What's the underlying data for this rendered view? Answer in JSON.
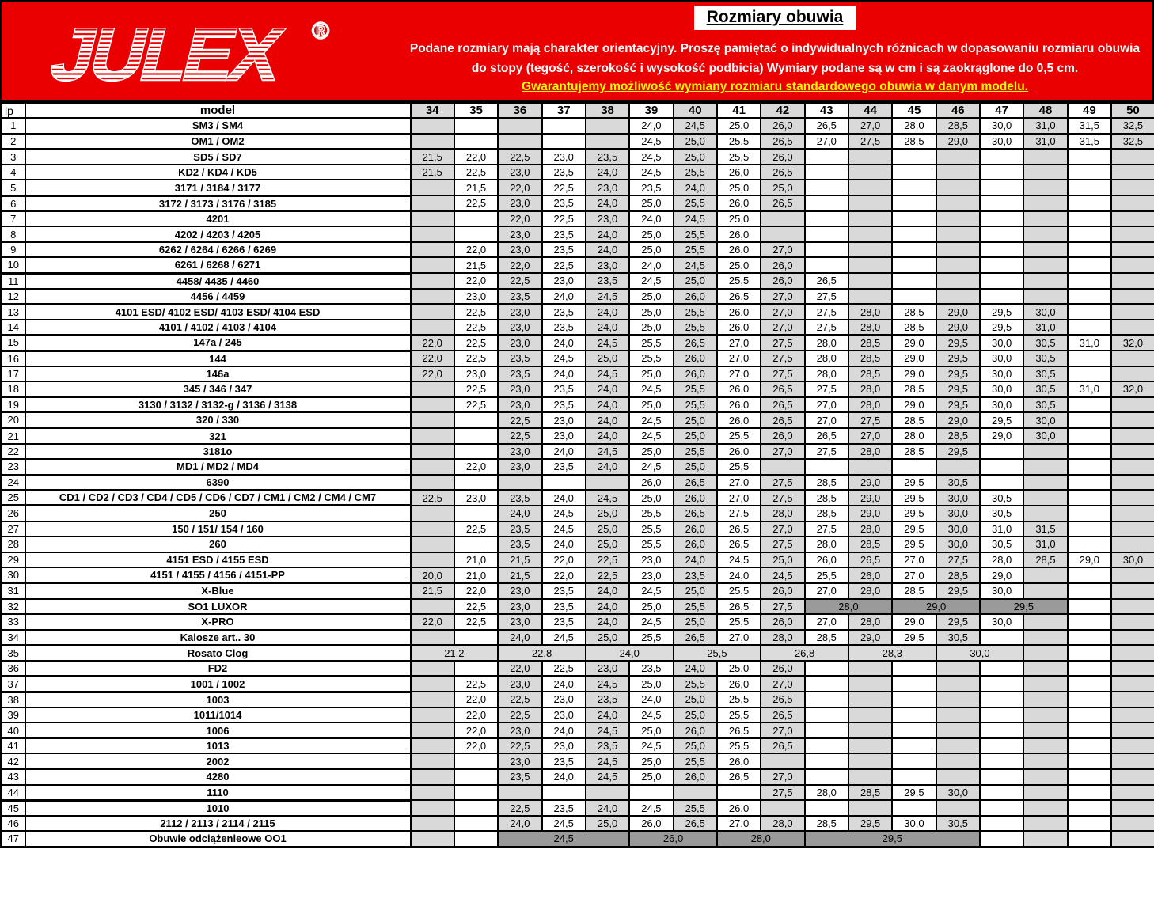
{
  "header": {
    "brand": "JULEX",
    "registered_mark": "®",
    "title": "Rozmiary obuwia",
    "note": "Podane rozmiary mają charakter orientacyjny. Proszę pamiętać o indywidualnych różnicach w dopasowaniu rozmiaru obuwia do stopy (tegość, szerokość i wysokość podbicia) Wymiary podane są w cm i są zaokrąglone do 0,5 cm.",
    "guarantee": "Gwarantujemy możliwość wymiany rozmiaru standardowego obuwia w danym modelu.",
    "colors": {
      "red": "#ea0000",
      "yellow": "#ffff00",
      "title_text": "#000000",
      "note_text": "#ffffff"
    }
  },
  "table": {
    "colors": {
      "shaded_column": "#d9d9d9",
      "merged_dark": "#9a9a9a",
      "merged_light": "#dcdcdc"
    },
    "lp_header": "lp",
    "model_header": "model",
    "sizes": [
      34,
      35,
      36,
      37,
      38,
      39,
      40,
      41,
      42,
      43,
      44,
      45,
      46,
      47,
      48,
      49,
      50
    ],
    "thick_after": [
      5,
      10,
      15,
      20,
      25,
      30,
      37,
      44
    ],
    "rows": [
      {
        "lp": 1,
        "model": "SM3 / SM4",
        "values": {
          "39": "24,0",
          "40": "24,5",
          "41": "25,0",
          "42": "26,0",
          "43": "26,5",
          "44": "27,0",
          "45": "28,0",
          "46": "28,5",
          "47": "30,0",
          "48": "31,0",
          "49": "31,5",
          "50": "32,5"
        }
      },
      {
        "lp": 2,
        "model": "OM1 / OM2",
        "values": {
          "39": "24,5",
          "40": "25,0",
          "41": "25,5",
          "42": "26,5",
          "43": "27,0",
          "44": "27,5",
          "45": "28,5",
          "46": "29,0",
          "47": "30,0",
          "48": "31,0",
          "49": "31,5",
          "50": "32,5"
        }
      },
      {
        "lp": 3,
        "model": "SD5 / SD7",
        "values": {
          "34": "21,5",
          "35": "22,0",
          "36": "22,5",
          "37": "23,0",
          "38": "23,5",
          "39": "24,5",
          "40": "25,0",
          "41": "25,5",
          "42": "26,0"
        }
      },
      {
        "lp": 4,
        "model": "KD2 / KD4 / KD5",
        "values": {
          "34": "21,5",
          "35": "22,5",
          "36": "23,0",
          "37": "23,5",
          "38": "24,0",
          "39": "24,5",
          "40": "25,5",
          "41": "26,0",
          "42": "26,5"
        }
      },
      {
        "lp": 5,
        "model": "3171 / 3184  / 3177",
        "values": {
          "35": "21,5",
          "36": "22,0",
          "37": "22,5",
          "38": "23,0",
          "39": "23,5",
          "40": "24,0",
          "41": "25,0",
          "42": "25,0"
        }
      },
      {
        "lp": 6,
        "model": "3172 / 3173 / 3176 / 3185",
        "values": {
          "35": "22,5",
          "36": "23,0",
          "37": "23,5",
          "38": "24,0",
          "39": "25,0",
          "40": "25,5",
          "41": "26,0",
          "42": "26,5"
        }
      },
      {
        "lp": 7,
        "model": "4201",
        "values": {
          "36": "22,0",
          "37": "22,5",
          "38": "23,0",
          "39": "24,0",
          "40": "24,5",
          "41": "25,0"
        }
      },
      {
        "lp": 8,
        "model": "4202 / 4203 / 4205",
        "values": {
          "36": "23,0",
          "37": "23,5",
          "38": "24,0",
          "39": "25,0",
          "40": "25,5",
          "41": "26,0"
        }
      },
      {
        "lp": 9,
        "model": "6262 / 6264 / 6266 / 6269",
        "values": {
          "35": "22,0",
          "36": "23,0",
          "37": "23,5",
          "38": "24,0",
          "39": "25,0",
          "40": "25,5",
          "41": "26,0",
          "42": "27,0"
        }
      },
      {
        "lp": 10,
        "model": "6261  / 6268 / 6271",
        "values": {
          "35": "21,5",
          "36": "22,0",
          "37": "22,5",
          "38": "23,0",
          "39": "24,0",
          "40": "24,5",
          "41": "25,0",
          "42": "26,0"
        }
      },
      {
        "lp": 11,
        "model": "4458/ 4435 / 4460",
        "values": {
          "35": "22,0",
          "36": "22,5",
          "37": "23,0",
          "38": "23,5",
          "39": "24,5",
          "40": "25,0",
          "41": "25,5",
          "42": "26,0",
          "43": "26,5"
        }
      },
      {
        "lp": 12,
        "model": "4456 / 4459",
        "values": {
          "35": "23,0",
          "36": "23,5",
          "37": "24,0",
          "38": "24,5",
          "39": "25,0",
          "40": "26,0",
          "41": "26,5",
          "42": "27,0",
          "43": "27,5"
        }
      },
      {
        "lp": 13,
        "model": "4101 ESD/ 4102 ESD/ 4103 ESD/ 4104 ESD",
        "values": {
          "35": "22,5",
          "36": "23,0",
          "37": "23,5",
          "38": "24,0",
          "39": "25,0",
          "40": "25,5",
          "41": "26,0",
          "42": "27,0",
          "43": "27,5",
          "44": "28,0",
          "45": "28,5",
          "46": "29,0",
          "47": "29,5",
          "48": "30,0"
        }
      },
      {
        "lp": 14,
        "model": "4101 / 4102 / 4103 / 4104",
        "values": {
          "35": "22,5",
          "36": "23,0",
          "37": "23,5",
          "38": "24,0",
          "39": "25,0",
          "40": "25,5",
          "41": "26,0",
          "42": "27,0",
          "43": "27,5",
          "44": "28,0",
          "45": "28,5",
          "46": "29,0",
          "47": "29,5",
          "48": "31,0"
        }
      },
      {
        "lp": 15,
        "model": "147a / 245",
        "values": {
          "34": "22,0",
          "35": "22,5",
          "36": "23,0",
          "37": "24,0",
          "38": "24,5",
          "39": "25,5",
          "40": "26,5",
          "41": "27,0",
          "42": "27,5",
          "43": "28,0",
          "44": "28,5",
          "45": "29,0",
          "46": "29,5",
          "47": "30,0",
          "48": "30,5",
          "49": "31,0",
          "50": "32,0"
        }
      },
      {
        "lp": 16,
        "model": "144",
        "values": {
          "34": "22,0",
          "35": "22,5",
          "36": "23,5",
          "37": "24,5",
          "38": "25,0",
          "39": "25,5",
          "40": "26,0",
          "41": "27,0",
          "42": "27,5",
          "43": "28,0",
          "44": "28,5",
          "45": "29,0",
          "46": "29,5",
          "47": "30,0",
          "48": "30,5"
        }
      },
      {
        "lp": 17,
        "model": "146a",
        "values": {
          "34": "22,0",
          "35": "23,0",
          "36": "23,5",
          "37": "24,0",
          "38": "24,5",
          "39": "25,0",
          "40": "26,0",
          "41": "27,0",
          "42": "27,5",
          "43": "28,0",
          "44": "28,5",
          "45": "29,0",
          "46": "29,5",
          "47": "30,0",
          "48": "30,5"
        }
      },
      {
        "lp": 18,
        "model": "345 / 346 / 347",
        "values": {
          "35": "22,5",
          "36": "23,0",
          "37": "23,5",
          "38": "24,0",
          "39": "24,5",
          "40": "25,5",
          "41": "26,0",
          "42": "26,5",
          "43": "27,5",
          "44": "28,0",
          "45": "28,5",
          "46": "29,5",
          "47": "30,0",
          "48": "30,5",
          "49": "31,0",
          "50": "32,0"
        }
      },
      {
        "lp": 19,
        "model": "3130 / 3132 / 3132-g / 3136 / 3138",
        "values": {
          "35": "22,5",
          "36": "23,0",
          "37": "23,5",
          "38": "24,0",
          "39": "25,0",
          "40": "25,5",
          "41": "26,0",
          "42": "26,5",
          "43": "27,0",
          "44": "28,0",
          "45": "29,0",
          "46": "29,5",
          "47": "30,0",
          "48": "30,5"
        }
      },
      {
        "lp": 20,
        "model": "320 / 330",
        "values": {
          "36": "22,5",
          "37": "23,0",
          "38": "24,0",
          "39": "24,5",
          "40": "25,0",
          "41": "26,0",
          "42": "26,5",
          "43": "27,0",
          "44": "27,5",
          "45": "28,5",
          "46": "29,0",
          "47": "29,5",
          "48": "30,0"
        }
      },
      {
        "lp": 21,
        "model": "321",
        "values": {
          "36": "22,5",
          "37": "23,0",
          "38": "24,0",
          "39": "24,5",
          "40": "25,0",
          "41": "25,5",
          "42": "26,0",
          "43": "26,5",
          "44": "27,0",
          "45": "28,0",
          "46": "28,5",
          "47": "29,0",
          "48": "30,0"
        }
      },
      {
        "lp": 22,
        "model": "3181o",
        "values": {
          "36": "23,0",
          "37": "24,0",
          "38": "24,5",
          "39": "25,0",
          "40": "25,5",
          "41": "26,0",
          "42": "27,0",
          "43": "27,5",
          "44": "28,0",
          "45": "28,5",
          "46": "29,5"
        }
      },
      {
        "lp": 23,
        "model": "MD1 / MD2 / MD4",
        "values": {
          "35": "22,0",
          "36": "23,0",
          "37": "23,5",
          "38": "24,0",
          "39": "24,5",
          "40": "25,0",
          "41": "25,5"
        }
      },
      {
        "lp": 24,
        "model": "6390",
        "values": {
          "39": "26,0",
          "40": "26,5",
          "41": "27,0",
          "42": "27,5",
          "43": "28,5",
          "44": "29,0",
          "45": "29,5",
          "46": "30,5"
        }
      },
      {
        "lp": 25,
        "model": "CD1 / CD2 / CD3 / CD4 / CD5 / CD6 / CD7 / CM1 / CM2 / CM4 / CM7",
        "values": {
          "34": "22,5",
          "35": "23,0",
          "36": "23,5",
          "37": "24,0",
          "38": "24,5",
          "39": "25,0",
          "40": "26,0",
          "41": "27,0",
          "42": "27,5",
          "43": "28,5",
          "44": "29,0",
          "45": "29,5",
          "46": "30,0",
          "47": "30,5"
        }
      },
      {
        "lp": 26,
        "model": "250",
        "values": {
          "36": "24,0",
          "37": "24,5",
          "38": "25,0",
          "39": "25,5",
          "40": "26,5",
          "41": "27,5",
          "42": "28,0",
          "43": "28,5",
          "44": "29,0",
          "45": "29,5",
          "46": "30,0",
          "47": "30,5"
        }
      },
      {
        "lp": 27,
        "model": "150 / 151/ 154 / 160",
        "values": {
          "35": "22,5",
          "36": "23,5",
          "37": "24,5",
          "38": "25,0",
          "39": "25,5",
          "40": "26,0",
          "41": "26,5",
          "42": "27,0",
          "43": "27,5",
          "44": "28,0",
          "45": "29,5",
          "46": "30,0",
          "47": "31,0",
          "48": "31,5"
        }
      },
      {
        "lp": 28,
        "model": "260",
        "values": {
          "36": "23,5",
          "37": "24,0",
          "38": "25,0",
          "39": "25,5",
          "40": "26,0",
          "41": "26,5",
          "42": "27,5",
          "43": "28,0",
          "44": "28,5",
          "45": "29,5",
          "46": "30,0",
          "47": "30,5",
          "48": "31,0"
        }
      },
      {
        "lp": 29,
        "model": "4151 ESD / 4155 ESD",
        "values": {
          "35": "21,0",
          "36": "21,5",
          "37": "22,0",
          "38": "22,5",
          "39": "23,0",
          "40": "24,0",
          "41": "24,5",
          "42": "25,0",
          "43": "26,0",
          "44": "26,5",
          "45": "27,0",
          "46": "27,5",
          "47": "28,0",
          "48": "28,5",
          "49": "29,0",
          "50": "30,0"
        }
      },
      {
        "lp": 30,
        "model": "4151 / 4155 / 4156 / 4151-PP",
        "values": {
          "34": "20,0",
          "35": "21,0",
          "36": "21,5",
          "37": "22,0",
          "38": "22,5",
          "39": "23,0",
          "40": "23,5",
          "41": "24,0",
          "42": "24,5",
          "43": "25,5",
          "44": "26,0",
          "45": "27,0",
          "46": "28,5",
          "47": "29,0"
        }
      },
      {
        "lp": 31,
        "model": "X-Blue",
        "values": {
          "34": "21,5",
          "35": "22,0",
          "36": "23,0",
          "37": "23,5",
          "38": "24,0",
          "39": "24,5",
          "40": "25,0",
          "41": "25,5",
          "42": "26,0",
          "43": "27,0",
          "44": "28,0",
          "45": "28,5",
          "46": "29,5",
          "47": "30,0"
        }
      },
      {
        "lp": 32,
        "model": "SO1 LUXOR",
        "values": {
          "35": "22,5",
          "36": "23,0",
          "37": "23,5",
          "38": "24,0",
          "39": "25,0",
          "40": "25,5",
          "41": "26,5",
          "42": "27,5"
        },
        "spans": [
          {
            "from": 43,
            "to": 44,
            "value": "28,0",
            "style": "dark"
          },
          {
            "from": 45,
            "to": 46,
            "value": "29,0",
            "style": "dark"
          },
          {
            "from": 47,
            "to": 48,
            "value": "29,5",
            "style": "dark"
          }
        ]
      },
      {
        "lp": 33,
        "model": "X-PRO",
        "values": {
          "34": "22,0",
          "35": "22,5",
          "36": "23,0",
          "37": "23,5",
          "38": "24,0",
          "39": "24,5",
          "40": "25,0",
          "41": "25,5",
          "42": "26,0",
          "43": "27,0",
          "44": "28,0",
          "45": "29,0",
          "46": "29,5",
          "47": "30,0"
        }
      },
      {
        "lp": 34,
        "model": "Kalosze art.. 30",
        "values": {
          "36": "24,0",
          "37": "24,5",
          "38": "25,0",
          "39": "25,5",
          "40": "26,5",
          "41": "27,0",
          "42": "28,0",
          "43": "28,5",
          "44": "29,0",
          "45": "29,5",
          "46": "30,5"
        }
      },
      {
        "lp": 35,
        "model": "Rosato Clog",
        "values": {},
        "spans": [
          {
            "from": 34,
            "to": 35,
            "value": "21,2",
            "style": "light"
          },
          {
            "from": 36,
            "to": 37,
            "value": "22,8",
            "style": "light"
          },
          {
            "from": 38,
            "to": 39,
            "value": "24,0",
            "style": "light"
          },
          {
            "from": 40,
            "to": 41,
            "value": "25,5",
            "style": "light"
          },
          {
            "from": 42,
            "to": 43,
            "value": "26,8",
            "style": "light"
          },
          {
            "from": 44,
            "to": 45,
            "value": "28,3",
            "style": "light"
          },
          {
            "from": 46,
            "to": 47,
            "value": "30,0",
            "style": "light"
          }
        ]
      },
      {
        "lp": 36,
        "model": "FD2",
        "values": {
          "36": "22,0",
          "37": "22,5",
          "38": "23,0",
          "39": "23,5",
          "40": "24,0",
          "41": "25,0",
          "42": "26,0"
        }
      },
      {
        "lp": 37,
        "model": "1001 / 1002",
        "values": {
          "35": "22,5",
          "36": "23,0",
          "37": "24,0",
          "38": "24,5",
          "39": "25,0",
          "40": "25,5",
          "41": "26,0",
          "42": "27,0"
        }
      },
      {
        "lp": 38,
        "model": "1003",
        "values": {
          "35": "22,0",
          "36": "22,5",
          "37": "23,0",
          "38": "23,5",
          "39": "24,0",
          "40": "25,0",
          "41": "25,5",
          "42": "26,5"
        }
      },
      {
        "lp": 39,
        "model": "1011/1014",
        "values": {
          "35": "22,0",
          "36": "22,5",
          "37": "23,0",
          "38": "24,0",
          "39": "24,5",
          "40": "25,0",
          "41": "25,5",
          "42": "26,5"
        }
      },
      {
        "lp": 40,
        "model": "1006",
        "values": {
          "35": "22,0",
          "36": "23,0",
          "37": "24,0",
          "38": "24,5",
          "39": "25,0",
          "40": "26,0",
          "41": "26,5",
          "42": "27,0"
        }
      },
      {
        "lp": 41,
        "model": "1013",
        "values": {
          "35": "22,0",
          "36": "22,5",
          "37": "23,0",
          "38": "23,5",
          "39": "24,5",
          "40": "25,0",
          "41": "25,5",
          "42": "26,5"
        }
      },
      {
        "lp": 42,
        "model": "2002",
        "values": {
          "36": "23,0",
          "37": "23,5",
          "38": "24,5",
          "39": "25,0",
          "40": "25,5",
          "41": "26,0"
        }
      },
      {
        "lp": 43,
        "model": "4280",
        "values": {
          "36": "23,5",
          "37": "24,0",
          "38": "24,5",
          "39": "25,0",
          "40": "26,0",
          "41": "26,5",
          "42": "27,0"
        }
      },
      {
        "lp": 44,
        "model": "1110",
        "values": {
          "42": "27,5",
          "43": "28,0",
          "44": "28,5",
          "45": "29,5",
          "46": "30,0"
        }
      },
      {
        "lp": 45,
        "model": "1010",
        "values": {
          "36": "22,5",
          "37": "23,5",
          "38": "24,0",
          "39": "24,5",
          "40": "25,5",
          "41": "26,0"
        }
      },
      {
        "lp": 46,
        "model": "2112 / 2113 / 2114 / 2115",
        "values": {
          "36": "24,0",
          "37": "24,5",
          "38": "25,0",
          "39": "26,0",
          "40": "26,5",
          "41": "27,0",
          "42": "28,0",
          "43": "28,5",
          "44": "29,5",
          "45": "30,0",
          "46": "30,5"
        }
      },
      {
        "lp": 47,
        "model": "Obuwie odciążenieowe OO1",
        "values": {},
        "spans": [
          {
            "from": 36,
            "to": 38,
            "value": "24,5",
            "style": "dark"
          },
          {
            "from": 39,
            "to": 40,
            "value": "26,0",
            "style": "dark"
          },
          {
            "from": 41,
            "to": 42,
            "value": "28,0",
            "style": "dark"
          },
          {
            "from": 43,
            "to": 46,
            "value": "29,5",
            "style": "dark"
          }
        ]
      }
    ]
  }
}
